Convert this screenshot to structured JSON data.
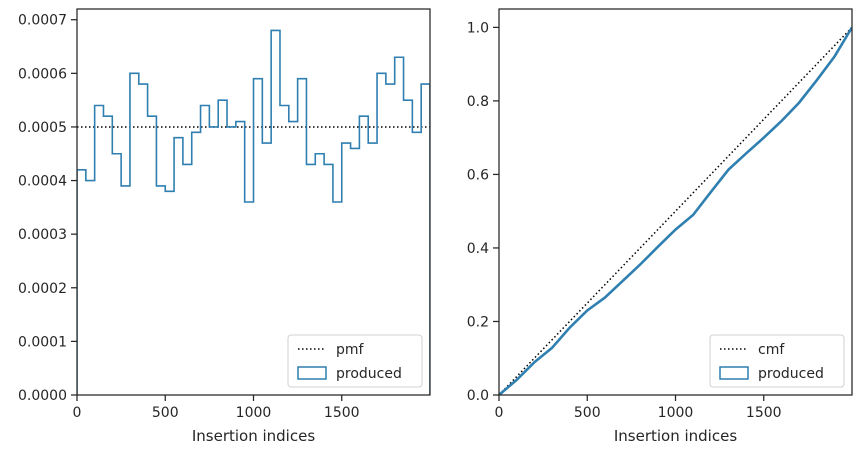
{
  "chart_data": [
    {
      "type": "histogram",
      "xlabel": "Insertion indices",
      "ylabel": "",
      "xlim": [
        0,
        2000
      ],
      "ylim": [
        0,
        0.00072
      ],
      "xticks": [
        0,
        500,
        1000,
        1500
      ],
      "xtick_labels": [
        "0",
        "500",
        "1000",
        "1500"
      ],
      "yticks": [
        0,
        0.0001,
        0.0002,
        0.0003,
        0.0004,
        0.0005,
        0.0006,
        0.0007
      ],
      "ytick_labels": [
        "0.0000",
        "0.0001",
        "0.0002",
        "0.0003",
        "0.0004",
        "0.0005",
        "0.0006",
        "0.0007"
      ],
      "grid": false,
      "legend_position": "lower right",
      "series": [
        {
          "name": "pmf",
          "style": "dotted",
          "color": "#000000",
          "x": [
            0,
            2000
          ],
          "values": [
            0.0005,
            0.0005
          ]
        },
        {
          "name": "produced",
          "style": "step",
          "color": "#2f7fb0",
          "bin_width": 50,
          "values": [
            0.00042,
            0.0004,
            0.00054,
            0.00052,
            0.00045,
            0.00039,
            0.0006,
            0.00058,
            0.00052,
            0.00039,
            0.00038,
            0.00048,
            0.00043,
            0.00049,
            0.00054,
            0.0005,
            0.00055,
            0.0005,
            0.00051,
            0.00036,
            0.00059,
            0.00047,
            0.00068,
            0.00054,
            0.00051,
            0.00059,
            0.00043,
            0.00045,
            0.00043,
            0.00036,
            0.00047,
            0.00046,
            0.00052,
            0.00047,
            0.0006,
            0.00058,
            0.00063,
            0.00055,
            0.00049,
            0.00058
          ]
        }
      ]
    },
    {
      "type": "line",
      "xlabel": "Insertion indices",
      "ylabel": "",
      "xlim": [
        0,
        2000
      ],
      "ylim": [
        0,
        1.05
      ],
      "xticks": [
        0,
        500,
        1000,
        1500
      ],
      "xtick_labels": [
        "0",
        "500",
        "1000",
        "1500"
      ],
      "yticks": [
        0,
        0.2,
        0.4,
        0.6,
        0.8,
        1.0
      ],
      "ytick_labels": [
        "0.0",
        "0.2",
        "0.4",
        "0.6",
        "0.8",
        "1.0"
      ],
      "grid": false,
      "legend_position": "lower right",
      "series": [
        {
          "name": "cmf",
          "style": "dotted",
          "color": "#000000",
          "x": [
            0,
            2000
          ],
          "values": [
            0,
            1.0
          ]
        },
        {
          "name": "produced",
          "style": "step",
          "color": "#2f7fb0",
          "x": [
            0,
            100,
            200,
            300,
            400,
            500,
            600,
            700,
            800,
            900,
            1000,
            1100,
            1200,
            1300,
            1400,
            1500,
            1600,
            1700,
            1800,
            1900,
            2000
          ],
          "values": [
            0,
            0.041,
            0.089,
            0.128,
            0.183,
            0.23,
            0.265,
            0.31,
            0.355,
            0.403,
            0.45,
            0.49,
            0.552,
            0.613,
            0.657,
            0.7,
            0.745,
            0.795,
            0.856,
            0.92,
            1.0
          ]
        }
      ]
    }
  ]
}
